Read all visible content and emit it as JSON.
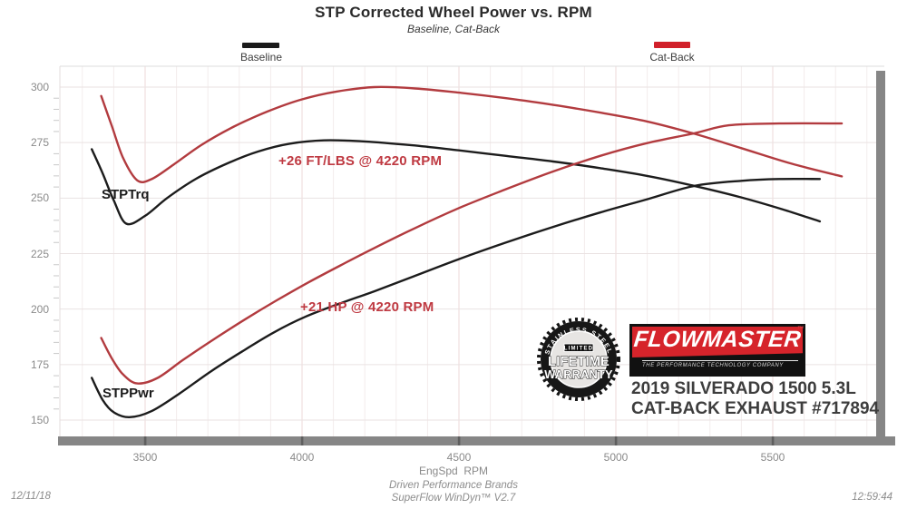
{
  "title": "STP Corrected Wheel Power vs. RPM",
  "subtitle": "Baseline, Cat-Back",
  "legend": [
    {
      "label": "Baseline",
      "color": "#1a1a1a"
    },
    {
      "label": "Cat-Back",
      "color": "#d1202a"
    }
  ],
  "annotations": {
    "trq_label": "STPTrq",
    "pwr_label": "STPPwr",
    "torque_gain": "+26 FT/LBS @ 4220 RPM",
    "power_gain": "+21 HP @ 4220 RPM"
  },
  "branding": {
    "logo_text": "FLOWMASTER",
    "logo_tm": "™",
    "logo_tagline": "THE PERFORMANCE TECHNOLOGY COMPANY",
    "vehicle_line1": "2019 SILVERADO 1500 5.3L",
    "vehicle_line2": "CAT-BACK EXHAUST #717894",
    "badge_arc": "STAINLESS STEEL",
    "badge_banner": "LIMITED",
    "badge_line1": "LIFETIME",
    "badge_line2": "WARRANTY"
  },
  "footer": {
    "date": "12/11/18",
    "brand_line": "Driven Performance Brands",
    "software_line": "SuperFlow WinDyn™ V2.7",
    "time": "12:59:44"
  },
  "chart_data": {
    "type": "line",
    "title": "STP Corrected Wheel Power vs. RPM",
    "subtitle": "Baseline, Cat-Back",
    "xlabel": "EngSpd  RPM",
    "ylabel": "",
    "xlim": [
      3230,
      5850
    ],
    "ylim": [
      142,
      309
    ],
    "x_ticks": [
      3500,
      4000,
      4500,
      5000,
      5500
    ],
    "y_ticks": [
      150,
      175,
      200,
      225,
      250,
      275,
      300
    ],
    "grid": "on",
    "legend_position": "top",
    "series": [
      {
        "name": "Baseline STPTrq",
        "legend": "Baseline",
        "unit": "FT/LBS",
        "color": "#1c1c1c",
        "points": [
          [
            3330,
            272
          ],
          [
            3365,
            261
          ],
          [
            3400,
            249
          ],
          [
            3440,
            238.5
          ],
          [
            3500,
            242
          ],
          [
            3570,
            250
          ],
          [
            3660,
            258.5
          ],
          [
            3760,
            265.5
          ],
          [
            3860,
            271
          ],
          [
            3960,
            274.5
          ],
          [
            4070,
            276
          ],
          [
            4200,
            275.5
          ],
          [
            4350,
            273.8
          ],
          [
            4500,
            271.5
          ],
          [
            4650,
            269
          ],
          [
            4800,
            266.5
          ],
          [
            4950,
            263.5
          ],
          [
            5100,
            260
          ],
          [
            5250,
            255.5
          ],
          [
            5400,
            250.3
          ],
          [
            5530,
            245
          ],
          [
            5650,
            239.5
          ]
        ]
      },
      {
        "name": "Cat-Back STPTrq",
        "legend": "Cat-Back",
        "unit": "FT/LBS",
        "color": "#b23b3f",
        "points": [
          [
            3360,
            296
          ],
          [
            3395,
            282
          ],
          [
            3430,
            268
          ],
          [
            3475,
            258
          ],
          [
            3520,
            258.5
          ],
          [
            3590,
            265
          ],
          [
            3680,
            274
          ],
          [
            3780,
            282
          ],
          [
            3890,
            289
          ],
          [
            4000,
            294.5
          ],
          [
            4110,
            298
          ],
          [
            4230,
            300
          ],
          [
            4360,
            299.4
          ],
          [
            4500,
            297.5
          ],
          [
            4650,
            295
          ],
          [
            4800,
            292
          ],
          [
            4950,
            288.5
          ],
          [
            5100,
            284.5
          ],
          [
            5250,
            279
          ],
          [
            5400,
            272.5
          ],
          [
            5560,
            265.5
          ],
          [
            5720,
            259.8
          ]
        ]
      },
      {
        "name": "Baseline STPPwr",
        "legend": "Baseline",
        "unit": "HP",
        "color": "#1c1c1c",
        "points": [
          [
            3330,
            169
          ],
          [
            3365,
            159
          ],
          [
            3400,
            153.5
          ],
          [
            3450,
            151.3
          ],
          [
            3520,
            154
          ],
          [
            3610,
            162
          ],
          [
            3710,
            172
          ],
          [
            3810,
            181
          ],
          [
            3910,
            189.5
          ],
          [
            4010,
            196.5
          ],
          [
            4120,
            202.5
          ],
          [
            4230,
            208
          ],
          [
            4360,
            215
          ],
          [
            4500,
            222.5
          ],
          [
            4650,
            230
          ],
          [
            4800,
            237
          ],
          [
            4950,
            243.5
          ],
          [
            5100,
            249.5
          ],
          [
            5250,
            255.5
          ],
          [
            5400,
            257.8
          ],
          [
            5520,
            258.6
          ],
          [
            5650,
            258.6
          ]
        ]
      },
      {
        "name": "Cat-Back STPPwr",
        "legend": "Cat-Back",
        "unit": "HP",
        "color": "#b23b3f",
        "points": [
          [
            3360,
            187
          ],
          [
            3395,
            177.5
          ],
          [
            3430,
            170.5
          ],
          [
            3475,
            166.5
          ],
          [
            3540,
            169
          ],
          [
            3620,
            177
          ],
          [
            3720,
            186.5
          ],
          [
            3820,
            195.5
          ],
          [
            3920,
            204
          ],
          [
            4020,
            212
          ],
          [
            4120,
            219.5
          ],
          [
            4230,
            227.5
          ],
          [
            4360,
            236.5
          ],
          [
            4500,
            245.5
          ],
          [
            4650,
            254
          ],
          [
            4800,
            262
          ],
          [
            4950,
            269
          ],
          [
            5100,
            274.8
          ],
          [
            5250,
            279.2
          ],
          [
            5360,
            282.8
          ],
          [
            5520,
            283.6
          ],
          [
            5720,
            283.6
          ]
        ]
      }
    ]
  }
}
